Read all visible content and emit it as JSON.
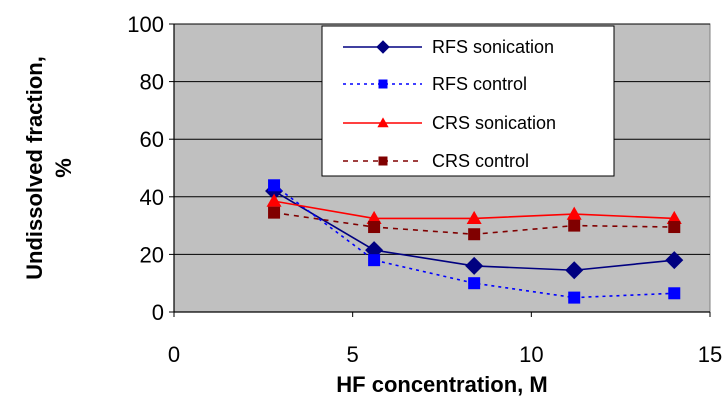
{
  "chart_data": {
    "type": "line",
    "xlabel": "HF concentration, M",
    "ylabel_line1": "Undissolved fraction,",
    "ylabel_line2": "%",
    "xlim": [
      0,
      15
    ],
    "ylim": [
      0,
      100
    ],
    "xticks": [
      "0",
      "5",
      "10",
      "15"
    ],
    "yticks": [
      "0",
      "20",
      "40",
      "60",
      "80",
      "100"
    ],
    "grid": true,
    "legend_position": "top-right",
    "plot_background": "#c0c0c0",
    "series": [
      {
        "name": "RFS sonication",
        "color": "#000080",
        "marker": "diamond",
        "dash": "solid",
        "x": [
          2.8,
          5.6,
          8.4,
          11.2,
          14.0
        ],
        "y": [
          42,
          21.5,
          16,
          14.5,
          18
        ]
      },
      {
        "name": "RFS control",
        "color": "#0000ff",
        "marker": "square",
        "dash": "dotted",
        "x": [
          2.8,
          5.6,
          8.4,
          11.2,
          14.0
        ],
        "y": [
          44,
          18,
          10,
          5,
          6.5
        ]
      },
      {
        "name": "CRS sonication",
        "color": "#ff0000",
        "marker": "triangle",
        "dash": "solid",
        "x": [
          2.8,
          5.6,
          8.4,
          11.2,
          14.0
        ],
        "y": [
          38.5,
          32.5,
          32.5,
          34,
          32.5
        ]
      },
      {
        "name": "CRS control",
        "color": "#800000",
        "marker": "square",
        "dash": "dashed",
        "x": [
          2.8,
          5.6,
          8.4,
          11.2,
          14.0
        ],
        "y": [
          34.5,
          29.5,
          27,
          30,
          29.5
        ]
      }
    ]
  }
}
